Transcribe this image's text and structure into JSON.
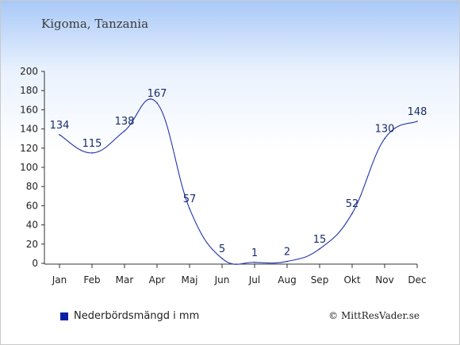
{
  "header": {
    "location": "Kigoma, Tanzania"
  },
  "legend": {
    "label": "Nederbördsmängd i mm",
    "color": "#0b1fa5"
  },
  "footer": {
    "credit": "© MittResVader.se"
  },
  "chart_data": {
    "type": "line",
    "categories": [
      "Jan",
      "Feb",
      "Mar",
      "Apr",
      "Maj",
      "Jun",
      "Jul",
      "Aug",
      "Sep",
      "Okt",
      "Nov",
      "Dec"
    ],
    "series": [
      {
        "name": "Nederbördsmängd i mm",
        "values": [
          134,
          115,
          138,
          167,
          57,
          5,
          1,
          2,
          15,
          52,
          130,
          148
        ],
        "color": "#2233aa"
      }
    ],
    "ylim": [
      0,
      200
    ],
    "yticks": [
      0,
      20,
      40,
      60,
      80,
      100,
      120,
      140,
      160,
      180,
      200
    ],
    "grid": false,
    "legend_position": "bottom-left"
  }
}
